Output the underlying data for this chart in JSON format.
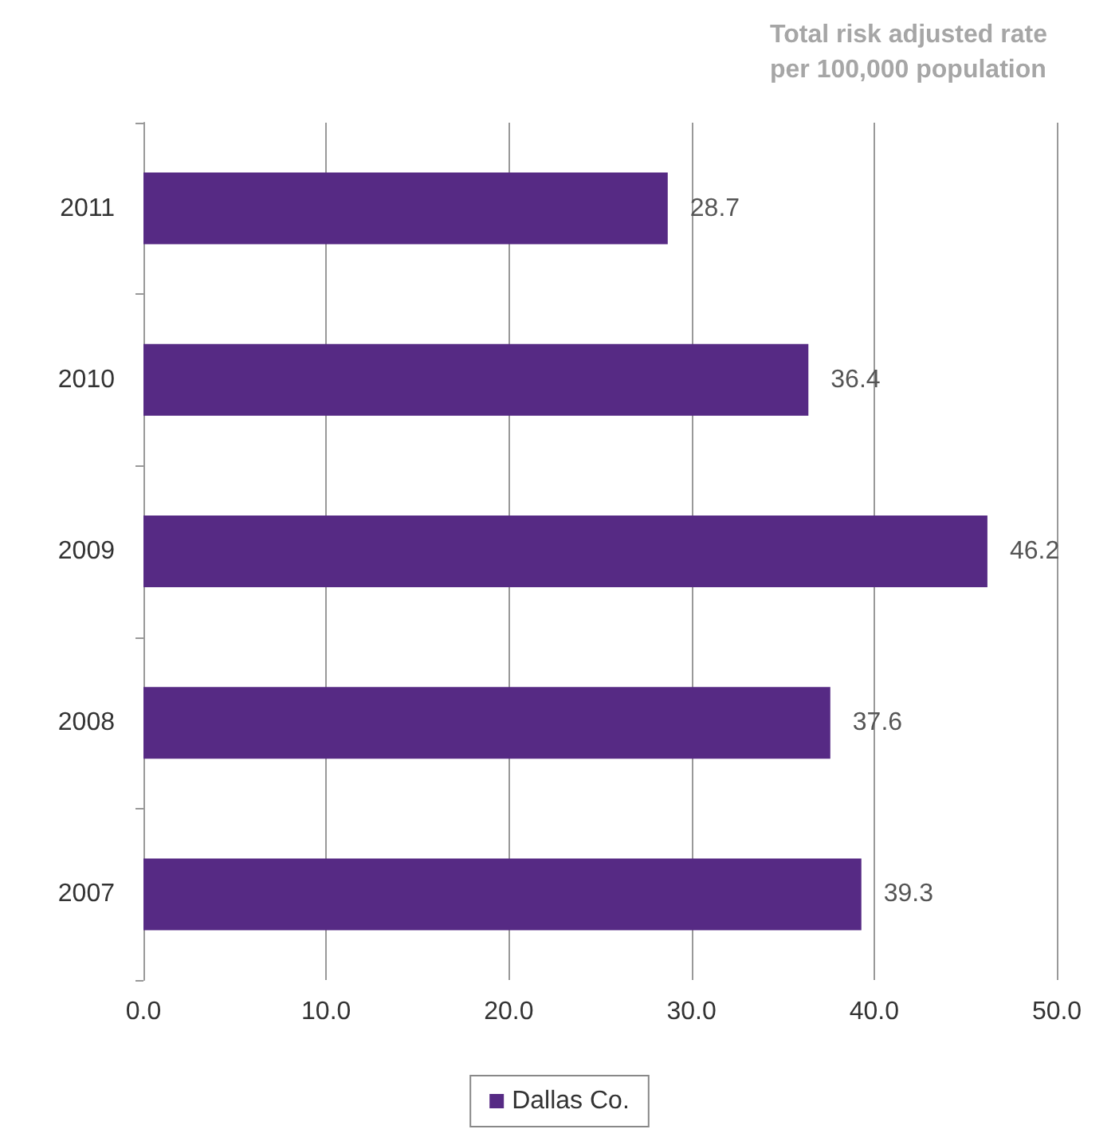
{
  "chart_data": {
    "type": "bar",
    "orientation": "horizontal",
    "title": "Total risk adjusted rate per 100,000 population",
    "categories": [
      "2011",
      "2010",
      "2009",
      "2008",
      "2007"
    ],
    "series": [
      {
        "name": "Dallas Co.",
        "color": "#562a84",
        "values": [
          28.7,
          36.4,
          46.2,
          37.6,
          39.3
        ]
      }
    ],
    "xlim": [
      0,
      50
    ],
    "xticks": [
      {
        "value": 0,
        "label": "0.0"
      },
      {
        "value": 10,
        "label": "10.0"
      },
      {
        "value": 20,
        "label": "20.0"
      },
      {
        "value": 30,
        "label": "30.0"
      },
      {
        "value": 40,
        "label": "40.0"
      },
      {
        "value": 50,
        "label": "50.0"
      }
    ],
    "grid": "x",
    "legend": "bottom",
    "data_labels": true
  }
}
